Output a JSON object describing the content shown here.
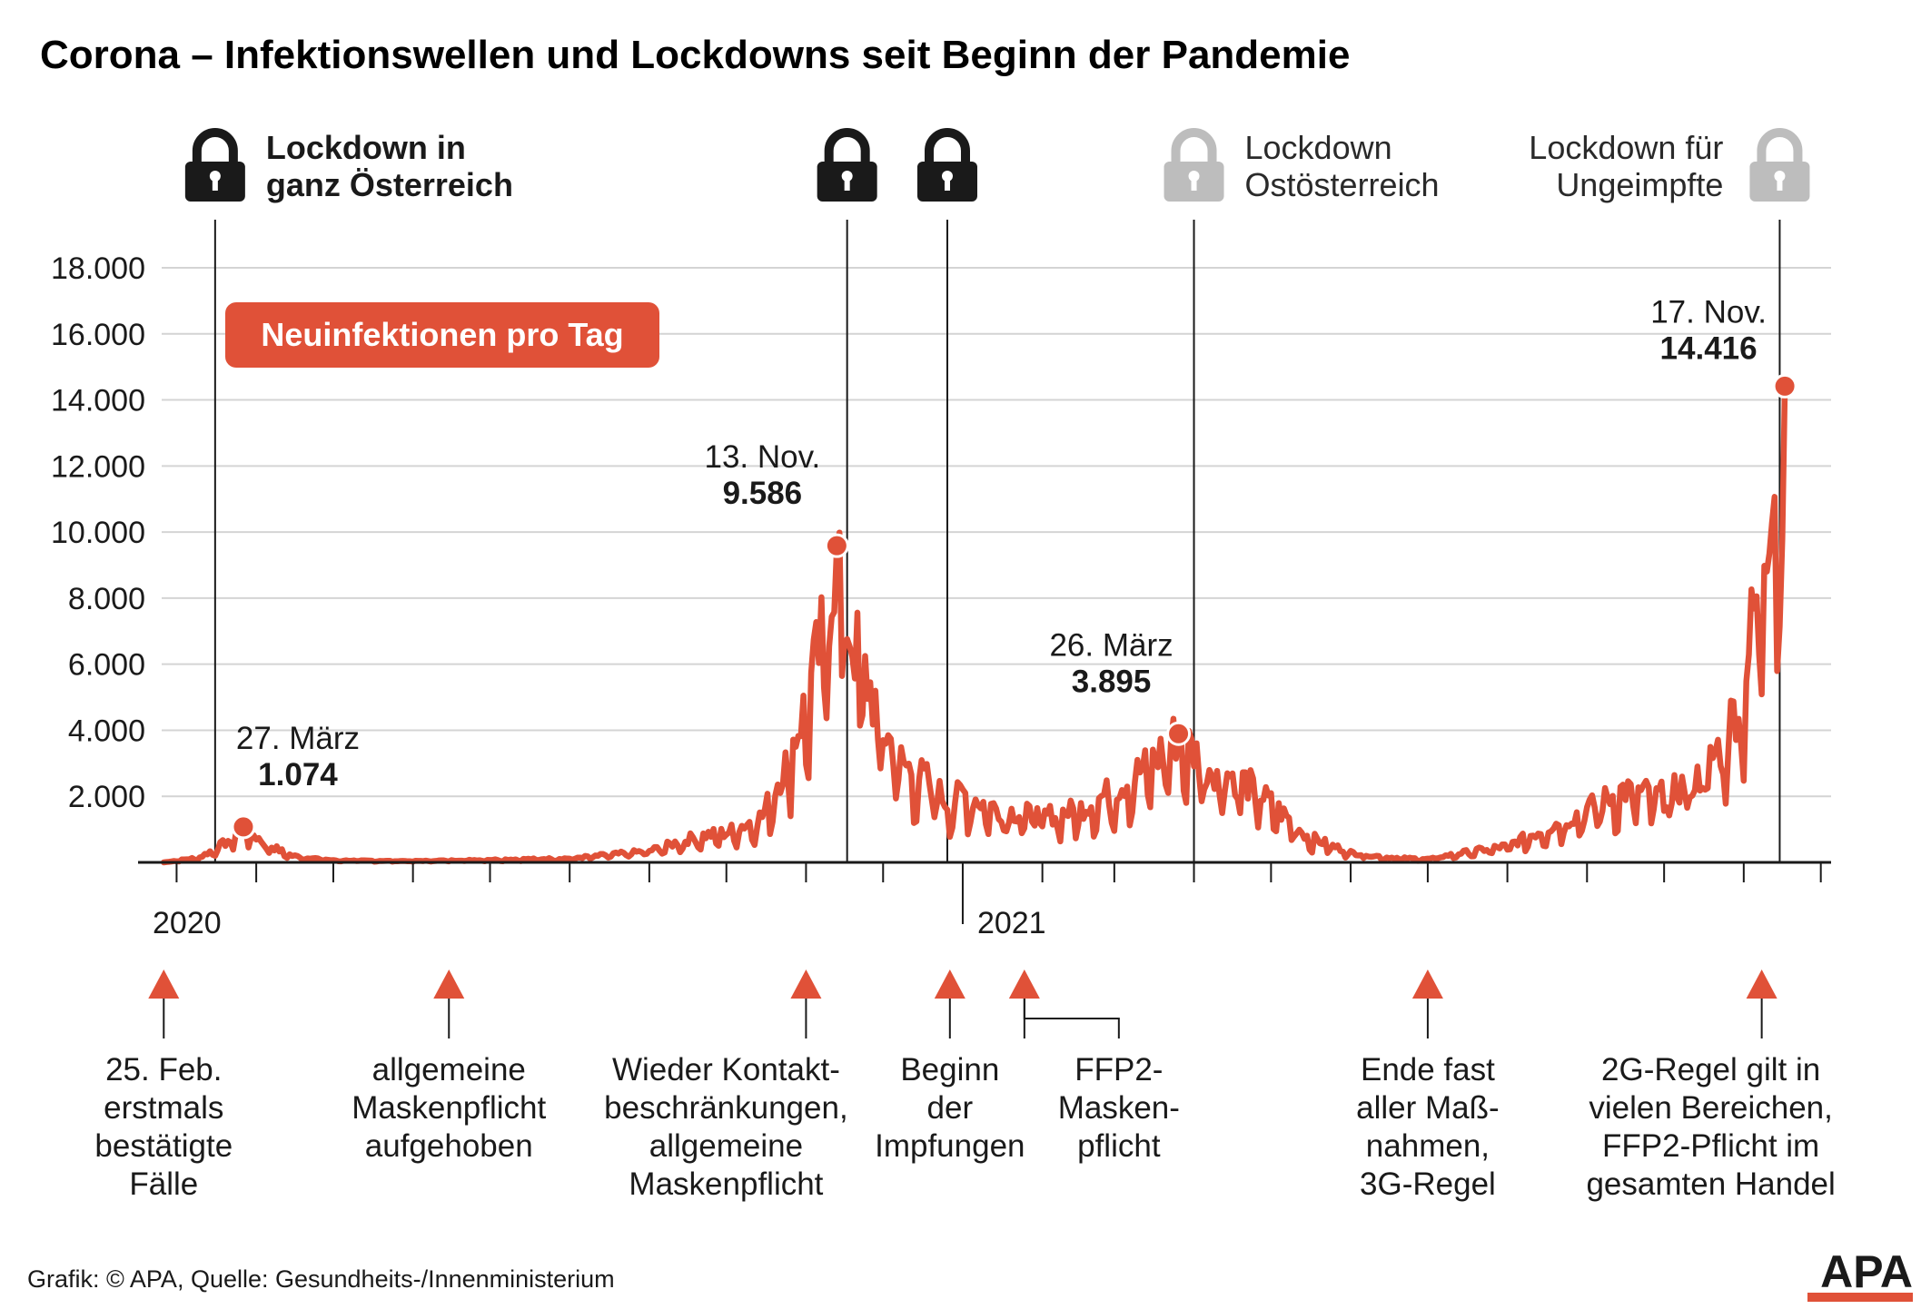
{
  "title": "Corona – Infektionswellen und Lockdowns seit Beginn der Pandemie",
  "badge": "Neuinfektionen pro Tag",
  "footer": "Grafik: © APA, Quelle: Gesundheits-/Innenministerium",
  "logo": "APA",
  "colors": {
    "series": "#e05138",
    "dark": "#1a1a1a",
    "lockLight": "#bdbdbd",
    "grid": "#d4d4d4"
  },
  "chart_data": {
    "type": "line",
    "ylim": [
      0,
      18000
    ],
    "yticks": [
      2000,
      4000,
      6000,
      8000,
      10000,
      12000,
      14000,
      16000,
      18000
    ],
    "ytick_labels": [
      "2.000",
      "4.000",
      "6.000",
      "8.000",
      "10.000",
      "12.000",
      "14.000",
      "16.000",
      "18.000"
    ],
    "xlim": [
      "2020-02-15",
      "2021-12-05"
    ],
    "year_labels": [
      {
        "label": "2020",
        "date": "2020-02-15"
      },
      {
        "label": "2021",
        "date": "2021-01-01"
      }
    ],
    "series": [
      {
        "points": [
          [
            "2020-02-25",
            0
          ],
          [
            "2020-03-10",
            150
          ],
          [
            "2020-03-20",
            600
          ],
          [
            "2020-03-27",
            1074
          ],
          [
            "2020-04-05",
            550
          ],
          [
            "2020-04-15",
            200
          ],
          [
            "2020-05-01",
            60
          ],
          [
            "2020-06-01",
            40
          ],
          [
            "2020-07-01",
            80
          ],
          [
            "2020-08-01",
            120
          ],
          [
            "2020-09-01",
            350
          ],
          [
            "2020-09-20",
            800
          ],
          [
            "2020-10-01",
            900
          ],
          [
            "2020-10-15",
            1400
          ],
          [
            "2020-10-25",
            3200
          ],
          [
            "2020-11-01",
            4800
          ],
          [
            "2020-11-08",
            7000
          ],
          [
            "2020-11-13",
            9586
          ],
          [
            "2020-11-18",
            7000
          ],
          [
            "2020-11-25",
            5500
          ],
          [
            "2020-12-01",
            4000
          ],
          [
            "2020-12-10",
            2900
          ],
          [
            "2020-12-20",
            2400
          ],
          [
            "2020-12-26",
            1800
          ],
          [
            "2021-01-01",
            2100
          ],
          [
            "2021-01-15",
            1600
          ],
          [
            "2021-02-01",
            1400
          ],
          [
            "2021-02-15",
            1600
          ],
          [
            "2021-03-01",
            2200
          ],
          [
            "2021-03-15",
            3000
          ],
          [
            "2021-03-26",
            3895
          ],
          [
            "2021-04-05",
            3000
          ],
          [
            "2021-04-20",
            2500
          ],
          [
            "2021-05-01",
            1800
          ],
          [
            "2021-05-15",
            800
          ],
          [
            "2021-06-01",
            300
          ],
          [
            "2021-06-15",
            150
          ],
          [
            "2021-07-01",
            100
          ],
          [
            "2021-07-15",
            300
          ],
          [
            "2021-08-01",
            500
          ],
          [
            "2021-08-15",
            1000
          ],
          [
            "2021-09-01",
            1600
          ],
          [
            "2021-09-15",
            2200
          ],
          [
            "2021-10-01",
            2000
          ],
          [
            "2021-10-15",
            2600
          ],
          [
            "2021-10-25",
            3800
          ],
          [
            "2021-11-01",
            5500
          ],
          [
            "2021-11-07",
            8500
          ],
          [
            "2021-11-12",
            12000
          ],
          [
            "2021-11-15",
            10800
          ],
          [
            "2021-11-17",
            14416
          ]
        ]
      }
    ],
    "peaks": [
      {
        "date": "2020-03-27",
        "label": "27. März",
        "value_label": "1.074",
        "value": 1074
      },
      {
        "date": "2020-11-13",
        "label": "13. Nov.",
        "value_label": "9.586",
        "value": 9586
      },
      {
        "date": "2021-03-26",
        "label": "26. März",
        "value_label": "3.895",
        "value": 3895
      },
      {
        "date": "2021-11-17",
        "label": "17. Nov.",
        "value_label": "14.416",
        "value": 14416
      }
    ],
    "lockdowns": [
      {
        "date": "2020-03-16",
        "label_lines": [
          "Lockdown in",
          "ganz Österreich"
        ],
        "style": "dark"
      },
      {
        "date": "2020-11-17",
        "label_lines": [],
        "style": "dark"
      },
      {
        "date": "2020-12-26",
        "label_lines": [],
        "style": "dark"
      },
      {
        "date": "2021-04-01",
        "label_lines": [
          "Lockdown",
          "Ostösterreich"
        ],
        "style": "light"
      },
      {
        "date": "2021-11-15",
        "label_lines": [
          "Lockdown für",
          "Ungeimpfte"
        ],
        "style": "light"
      }
    ],
    "events": [
      {
        "date": "2020-02-25",
        "lines": [
          "25. Feb.",
          "erstmals",
          "bestätigte",
          "Fälle"
        ]
      },
      {
        "date": "2020-06-15",
        "lines": [
          "allgemeine",
          "Maskenpflicht",
          "aufgehoben"
        ]
      },
      {
        "date": "2020-11-01",
        "lines": [
          "Wieder Kontakt-",
          "beschränkungen,",
          "allgemeine",
          "Maskenpflicht"
        ]
      },
      {
        "date": "2020-12-27",
        "lines": [
          "Beginn",
          "der",
          "Impfungen"
        ]
      },
      {
        "date": "2021-01-25",
        "lines": [
          "FFP2-",
          "Masken-",
          "pflicht"
        ]
      },
      {
        "date": "2021-07-01",
        "lines": [
          "Ende fast",
          "aller Maß-",
          "nahmen,",
          "3G-Regel"
        ]
      },
      {
        "date": "2021-11-08",
        "lines": [
          "2G-Regel gilt in",
          "vielen Bereichen,",
          "FFP2-Pflicht im",
          "gesamten Handel"
        ]
      }
    ]
  }
}
